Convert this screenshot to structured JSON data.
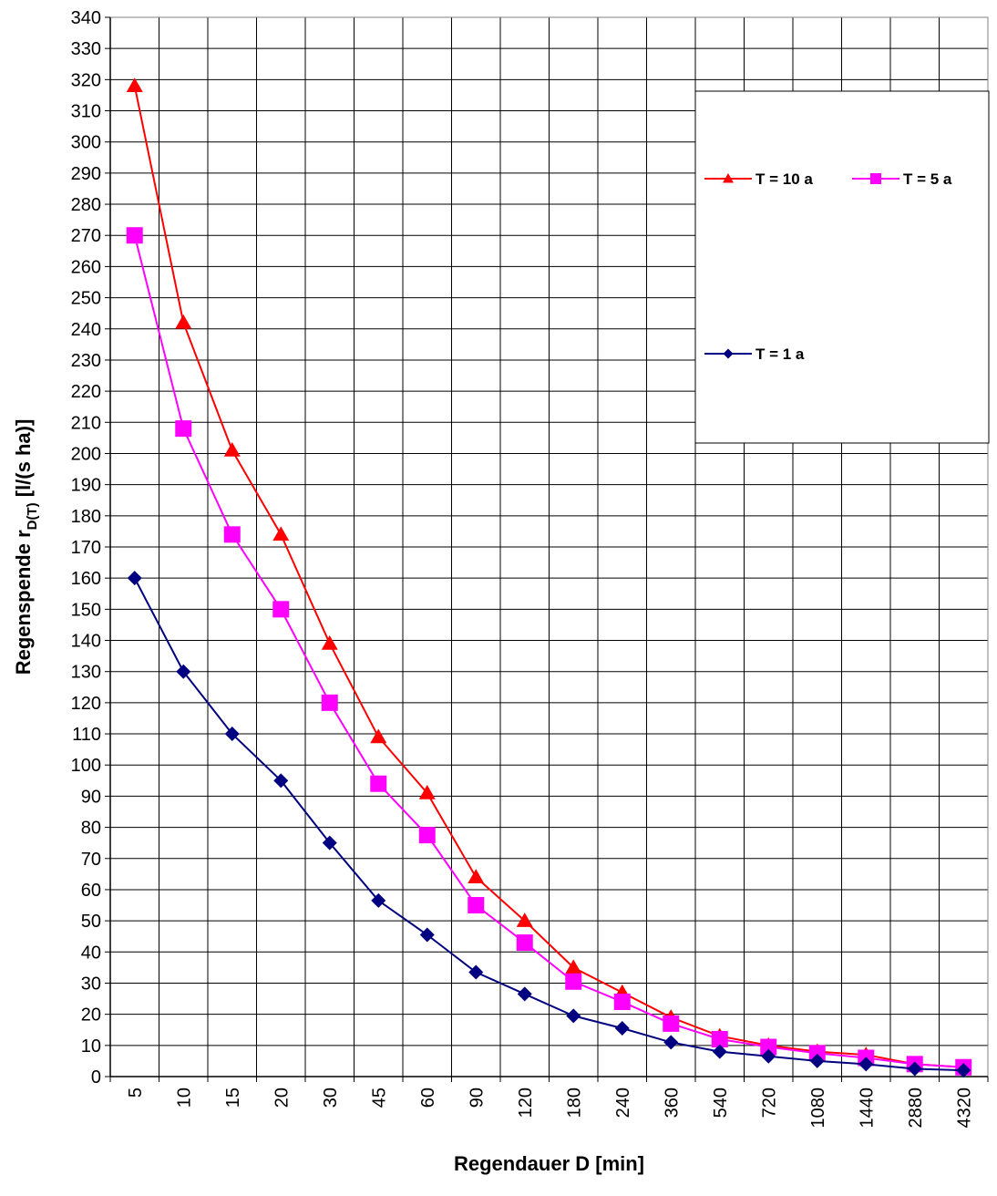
{
  "chart_data": {
    "type": "line",
    "title": "",
    "xlabel": "Regendauer D [min]",
    "ylabel_main": "Regenspende r",
    "ylabel_sub": "D(T)",
    "ylabel_unit": " [l/(s ha)]",
    "categories": [
      "5",
      "10",
      "15",
      "20",
      "30",
      "45",
      "60",
      "90",
      "120",
      "180",
      "240",
      "360",
      "540",
      "720",
      "1080",
      "1440",
      "2880",
      "4320"
    ],
    "ylim": [
      0,
      340
    ],
    "ytick_step": 10,
    "grid": true,
    "legend_position": "top-right",
    "series": [
      {
        "name": "T = 10 a",
        "color": "#ff0000",
        "marker": "triangle",
        "values": [
          318,
          242,
          201,
          174,
          139,
          109,
          91,
          64,
          50,
          35,
          27,
          19,
          13,
          10,
          8,
          7,
          4,
          3
        ]
      },
      {
        "name": "T = 5 a",
        "color": "#ff00ff",
        "marker": "square",
        "values": [
          270,
          208,
          174,
          150,
          120,
          94,
          77.5,
          55,
          43,
          30.5,
          24,
          17,
          12,
          9.5,
          7.5,
          6,
          4,
          3
        ]
      },
      {
        "name": "T = 1 a",
        "color": "#000080",
        "marker": "diamond",
        "values": [
          160,
          130,
          110,
          95,
          75,
          56.5,
          45.5,
          33.5,
          26.5,
          19.5,
          15.5,
          11,
          8,
          6.5,
          5,
          4,
          2.5,
          2
        ]
      }
    ]
  }
}
